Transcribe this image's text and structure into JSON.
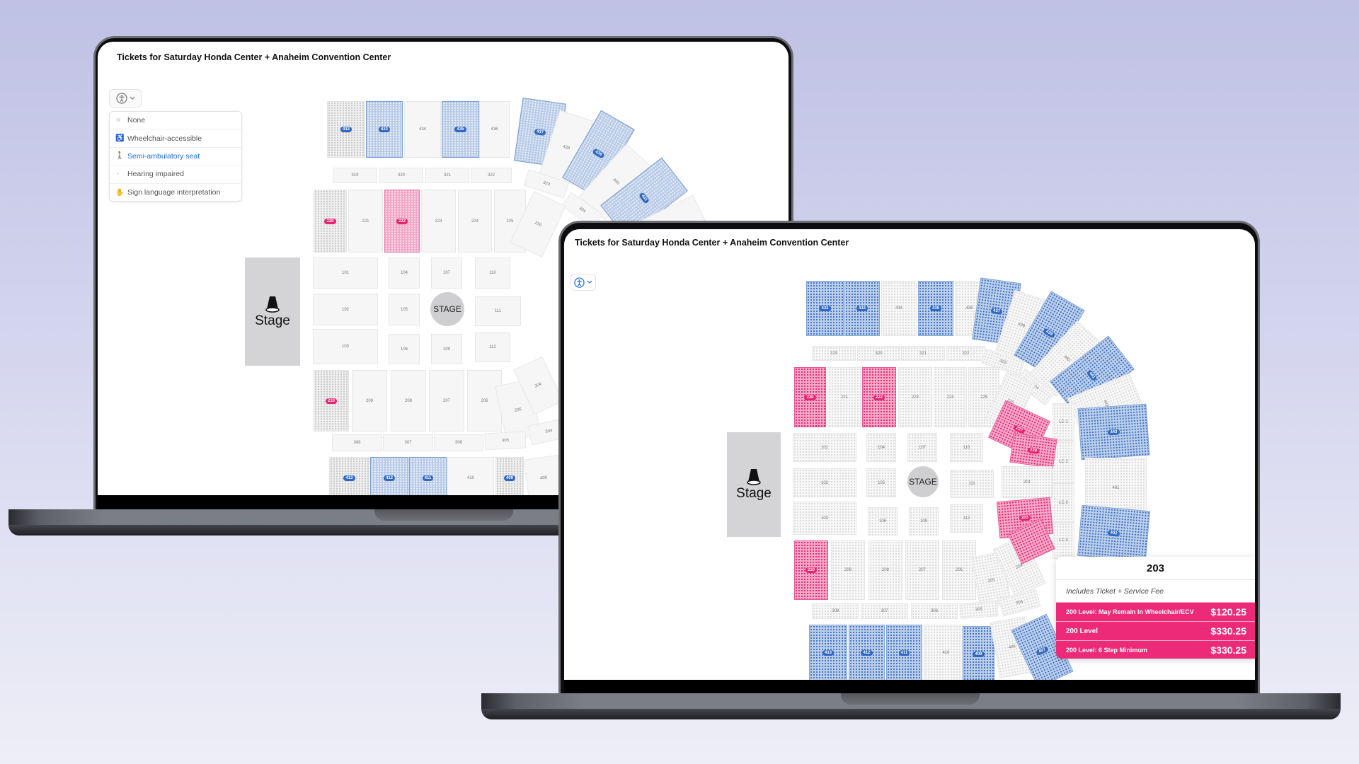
{
  "colors": {
    "accent_blue": "#1a6cf0",
    "selected_pink": "#ec2a78",
    "highlight_blue": "#7fa3d6"
  },
  "left": {
    "title": "Tickets for Saturday Honda Center + Anaheim Convention Center",
    "a11y_icon": "accessibility-icon",
    "dropdown": [
      {
        "label": "None",
        "icon": "close-icon",
        "selected": false
      },
      {
        "label": "Wheelchair-accessible",
        "icon": "wheelchair-icon",
        "selected": false
      },
      {
        "label": "Semi-ambulatory seat",
        "icon": "walking-person-icon",
        "selected": true
      },
      {
        "label": "Hearing impaired",
        "icon": "hearing-icon",
        "selected": false
      },
      {
        "label": "Sign language interpretation",
        "icon": "sign-language-icon",
        "selected": false
      }
    ],
    "stage_label": "Stage",
    "stage_circle": "STAGE",
    "sections": [
      {
        "label": "432",
        "status": "dimmed",
        "badge": "blue"
      },
      {
        "label": "433",
        "status": "highlighted",
        "badge": "blue"
      },
      {
        "label": "434",
        "status": "plain"
      },
      {
        "label": "435",
        "status": "highlighted",
        "badge": "blue"
      },
      {
        "label": "436",
        "status": "plain"
      },
      {
        "label": "437",
        "status": "highlighted",
        "badge": "blue"
      },
      {
        "label": "438",
        "status": "plain"
      },
      {
        "label": "439",
        "status": "highlighted",
        "badge": "blue"
      },
      {
        "label": "440",
        "status": "plain"
      },
      {
        "label": "441",
        "status": "highlighted",
        "badge": "blue"
      },
      {
        "label": "",
        "status": "plain"
      },
      {
        "label": "319",
        "status": "plain"
      },
      {
        "label": "320",
        "status": "plain"
      },
      {
        "label": "321",
        "status": "plain"
      },
      {
        "label": "322",
        "status": "plain"
      },
      {
        "label": "323",
        "status": "plain"
      },
      {
        "label": "324",
        "status": "plain"
      },
      {
        "label": "220",
        "status": "dimmed",
        "badge": "pink"
      },
      {
        "label": "221",
        "status": "plain"
      },
      {
        "label": "222",
        "status": "selected",
        "badge": "pink"
      },
      {
        "label": "223",
        "status": "plain"
      },
      {
        "label": "224",
        "status": "plain"
      },
      {
        "label": "225",
        "status": "plain"
      },
      {
        "label": "226",
        "status": "plain"
      },
      {
        "label": "101",
        "status": "plain"
      },
      {
        "label": "104",
        "status": "plain"
      },
      {
        "label": "107",
        "status": "plain"
      },
      {
        "label": "110",
        "status": "plain"
      },
      {
        "label": "102",
        "status": "plain"
      },
      {
        "label": "105",
        "status": "plain"
      },
      {
        "label": "111",
        "status": "plain"
      },
      {
        "label": "103",
        "status": "plain"
      },
      {
        "label": "106",
        "status": "plain"
      },
      {
        "label": "109",
        "status": "plain"
      },
      {
        "label": "112",
        "status": "plain"
      },
      {
        "label": "210",
        "status": "dimmed",
        "badge": "pink"
      },
      {
        "label": "209",
        "status": "plain"
      },
      {
        "label": "208",
        "status": "plain"
      },
      {
        "label": "207",
        "status": "plain"
      },
      {
        "label": "206",
        "status": "plain"
      },
      {
        "label": "205",
        "status": "plain"
      },
      {
        "label": "204",
        "status": "plain"
      },
      {
        "label": "308",
        "status": "plain"
      },
      {
        "label": "307",
        "status": "plain"
      },
      {
        "label": "306",
        "status": "plain"
      },
      {
        "label": "305",
        "status": "plain"
      },
      {
        "label": "304",
        "status": "plain"
      },
      {
        "label": "413",
        "status": "dimmed",
        "badge": "blue"
      },
      {
        "label": "412",
        "status": "highlighted",
        "badge": "blue"
      },
      {
        "label": "411",
        "status": "highlighted",
        "badge": "blue"
      },
      {
        "label": "410",
        "status": "plain"
      },
      {
        "label": "409",
        "status": "dimmed",
        "badge": "blue"
      },
      {
        "label": "408",
        "status": "plain"
      }
    ]
  },
  "right": {
    "title": "Tickets for Saturday Honda Center + Anaheim Convention Center",
    "a11y_icon": "accessibility-icon",
    "stage_label": "Stage",
    "stage_circle": "STAGE",
    "sections": [
      {
        "label": "432",
        "status": "highlighted",
        "badge": "blue"
      },
      {
        "label": "433",
        "status": "highlighted",
        "badge": "blue"
      },
      {
        "label": "434",
        "status": "plain"
      },
      {
        "label": "435",
        "status": "highlighted",
        "badge": "blue"
      },
      {
        "label": "436",
        "status": "plain"
      },
      {
        "label": "437",
        "status": "highlighted",
        "badge": "blue"
      },
      {
        "label": "438",
        "status": "plain"
      },
      {
        "label": "439",
        "status": "highlighted",
        "badge": "blue"
      },
      {
        "label": "440",
        "status": "plain"
      },
      {
        "label": "441",
        "status": "highlighted",
        "badge": "blue"
      },
      {
        "label": "442",
        "status": "plain"
      },
      {
        "label": "443",
        "status": "highlighted",
        "badge": "blue"
      },
      {
        "label": "401",
        "status": "plain"
      },
      {
        "label": "402",
        "status": "highlighted",
        "badge": "blue"
      },
      {
        "label": "319",
        "status": "plain"
      },
      {
        "label": "320",
        "status": "plain"
      },
      {
        "label": "321",
        "status": "plain"
      },
      {
        "label": "322",
        "status": "plain"
      },
      {
        "label": "323",
        "status": "plain"
      },
      {
        "label": "324",
        "status": "plain"
      },
      {
        "label": "LC 1",
        "status": "plain"
      },
      {
        "label": "LC 2",
        "status": "plain"
      },
      {
        "label": "LC 3",
        "status": "plain"
      },
      {
        "label": "LC 4",
        "status": "plain"
      },
      {
        "label": "220",
        "status": "selected",
        "badge": "pink"
      },
      {
        "label": "221",
        "status": "plain"
      },
      {
        "label": "222",
        "status": "selected",
        "badge": "pink"
      },
      {
        "label": "223",
        "status": "plain"
      },
      {
        "label": "224",
        "status": "plain"
      },
      {
        "label": "225",
        "status": "plain"
      },
      {
        "label": "226",
        "status": "plain"
      },
      {
        "label": "227",
        "status": "selected",
        "badge": "pink"
      },
      {
        "label": "228",
        "status": "selected",
        "badge": "pink"
      },
      {
        "label": "201",
        "status": "plain"
      },
      {
        "label": "203",
        "status": "selected",
        "badge": "pink"
      },
      {
        "label": "101",
        "status": "plain"
      },
      {
        "label": "104",
        "status": "plain"
      },
      {
        "label": "107",
        "status": "plain"
      },
      {
        "label": "110",
        "status": "plain"
      },
      {
        "label": "102",
        "status": "plain"
      },
      {
        "label": "105",
        "status": "plain"
      },
      {
        "label": "111",
        "status": "plain"
      },
      {
        "label": "103",
        "status": "plain"
      },
      {
        "label": "106",
        "status": "plain"
      },
      {
        "label": "109",
        "status": "plain"
      },
      {
        "label": "112",
        "status": "plain"
      },
      {
        "label": "210",
        "status": "selected",
        "badge": "pink"
      },
      {
        "label": "209",
        "status": "plain"
      },
      {
        "label": "208",
        "status": "plain"
      },
      {
        "label": "207",
        "status": "plain"
      },
      {
        "label": "206",
        "status": "plain"
      },
      {
        "label": "205",
        "status": "plain"
      },
      {
        "label": "204",
        "status": "plain"
      },
      {
        "label": "",
        "status": "selected"
      },
      {
        "label": "308",
        "status": "plain"
      },
      {
        "label": "307",
        "status": "plain"
      },
      {
        "label": "306",
        "status": "plain"
      },
      {
        "label": "305",
        "status": "plain"
      },
      {
        "label": "304",
        "status": "plain"
      },
      {
        "label": "413",
        "status": "highlighted",
        "badge": "blue"
      },
      {
        "label": "412",
        "status": "highlighted",
        "badge": "blue"
      },
      {
        "label": "411",
        "status": "highlighted",
        "badge": "blue"
      },
      {
        "label": "410",
        "status": "plain"
      },
      {
        "label": "409",
        "status": "highlighted",
        "badge": "blue"
      },
      {
        "label": "408",
        "status": "plain"
      },
      {
        "label": "407",
        "status": "highlighted",
        "badge": "blue"
      }
    ],
    "tooltip": {
      "section": "203",
      "subtitle": "Includes Ticket + Service Fee",
      "rows": [
        {
          "name": "200 Level: May Remain In Wheelchair/ECV",
          "price": "$120.25"
        },
        {
          "name": "200 Level",
          "price": "$330.25"
        },
        {
          "name": "200 Level: 6 Step Minimum",
          "price": "$330.25"
        }
      ]
    }
  }
}
